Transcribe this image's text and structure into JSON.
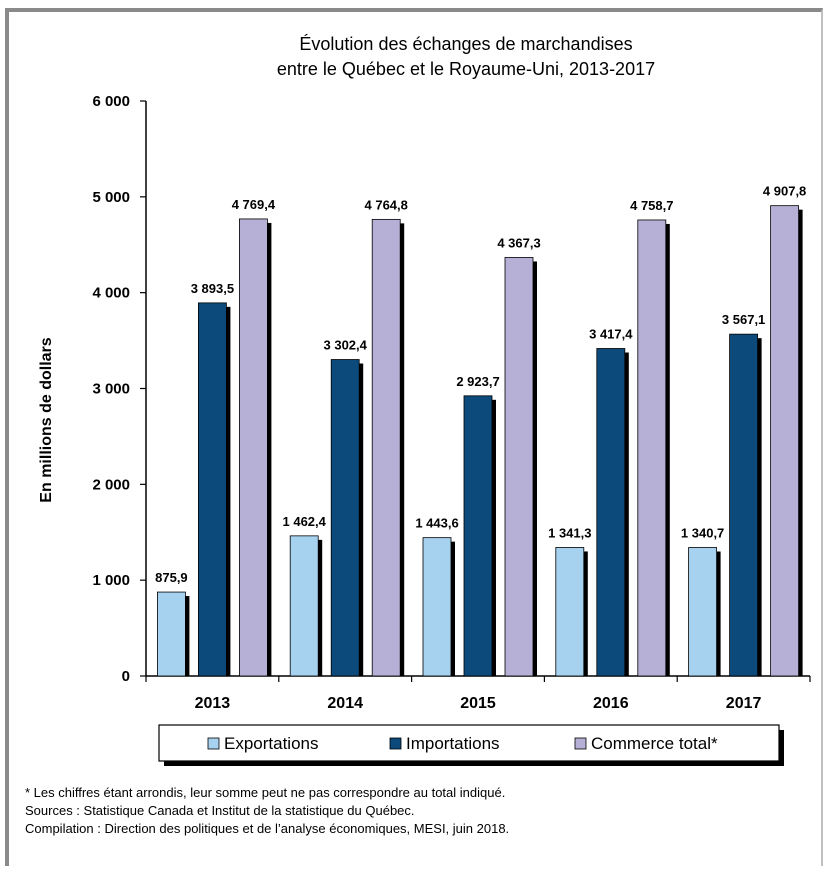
{
  "chart_data": {
    "type": "bar",
    "title": [
      "Évolution des échanges de marchandises",
      "entre le Québec et le Royaume-Uni, 2013-2017"
    ],
    "ylabel": "En millions de dollars",
    "xlabel": "",
    "ylim": [
      0,
      6000
    ],
    "yticks": [
      0,
      1000,
      2000,
      3000,
      4000,
      5000,
      6000
    ],
    "ytick_labels": [
      "0",
      "1 000",
      "2 000",
      "3 000",
      "4 000",
      "5 000",
      "6 000"
    ],
    "categories": [
      "2013",
      "2014",
      "2015",
      "2016",
      "2017"
    ],
    "legend_position": "bottom",
    "grid": false,
    "series": [
      {
        "name": "Exportations",
        "color": "#a6d2f0",
        "values": [
          875.9,
          1462.4,
          1443.6,
          1341.3,
          1340.7
        ],
        "labels": [
          "875,9",
          "1 462,4",
          "1 443,6",
          "1 341,3",
          "1 340,7"
        ]
      },
      {
        "name": "Importations",
        "color": "#0b4a7a",
        "values": [
          3893.5,
          3302.4,
          2923.7,
          3417.4,
          3567.1
        ],
        "labels": [
          "3 893,5",
          "3 302,4",
          "2 923,7",
          "3 417,4",
          "3 567,1"
        ]
      },
      {
        "name": "Commerce total*",
        "color": "#b6b0d6",
        "values": [
          4769.4,
          4764.8,
          4367.3,
          4758.7,
          4907.8
        ],
        "labels": [
          "4 769,4",
          "4 764,8",
          "4 367,3",
          "4 758,7",
          "4 907,8"
        ]
      }
    ]
  },
  "notes": {
    "line1": "* Les chiffres étant arrondis, leur somme peut ne pas correspondre au total indiqué.",
    "line2": "Sources : Statistique Canada et Institut de la statistique du Québec.",
    "line3": "Compilation : Direction des politiques et de l’analyse économiques, MESI, juin 2018."
  }
}
